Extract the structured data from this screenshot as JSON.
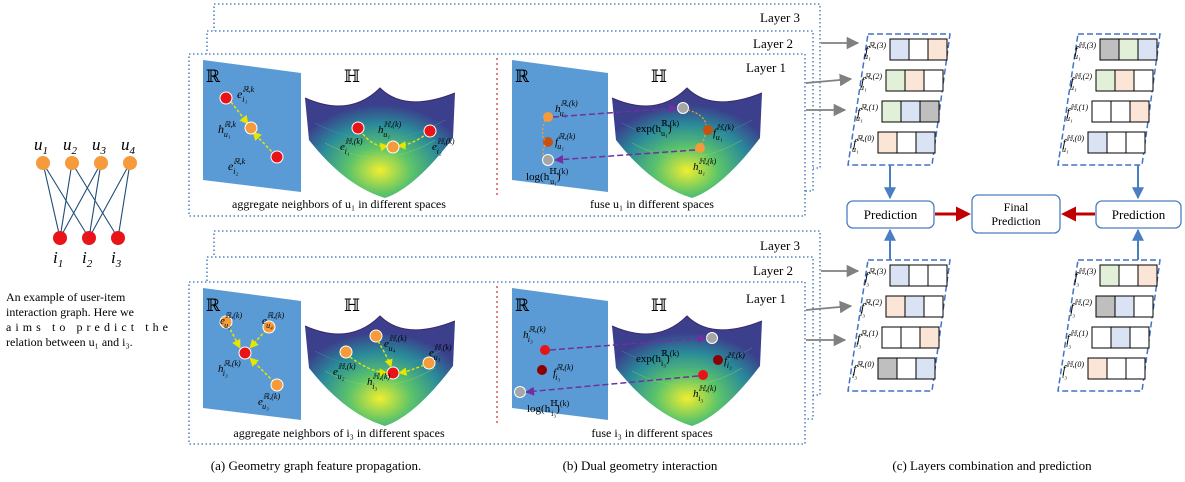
{
  "graph": {
    "users": [
      "u",
      "u",
      "u",
      "u"
    ],
    "user_subs": [
      "1",
      "2",
      "3",
      "4"
    ],
    "items": [
      "i",
      "i",
      "i"
    ],
    "item_subs": [
      "1",
      "2",
      "3"
    ],
    "caption_lines": [
      "An example of user-item",
      "interaction graph. Here we",
      "aims to predict the",
      "relation between u₁ and i₃."
    ],
    "colors": {
      "user": "#f59b3c",
      "item": "#e8141a"
    }
  },
  "layers": {
    "l1": "Layer 1",
    "l2": "Layer 2",
    "l3": "Layer 3"
  },
  "spaces": {
    "real": "ℝ",
    "hyper": "ℍ"
  },
  "top_panel": {
    "aggregate_caption": "aggregate neighbors of u₁ in different spaces",
    "fuse_caption": "fuse u₁ in different spaces",
    "labels": {
      "e_i1": "e",
      "e_i2": "e",
      "h_u1": "h",
      "e_i1_h": "e",
      "h_u1_h": "h",
      "e_i2_h": "e",
      "h_u1_r_b": "h",
      "f_u1_r": "f",
      "log_h": "log(h",
      "exp_h": "exp(h",
      "f_u1_h": "f",
      "h_u1_h_b": "h"
    }
  },
  "bottom_panel": {
    "aggregate_caption": "aggregate neighbors of i₃ in different spaces",
    "fuse_caption": "fuse i₃ in different spaces"
  },
  "prediction": {
    "left": "Prediction",
    "right": "Prediction",
    "final_line1": "Final",
    "final_line2": "Prediction"
  },
  "feature_stacks": {
    "top_left": {
      "f": "f",
      "sub": "u₁",
      "sups": [
        "ℝ,(3)",
        "ℝ,(2)",
        "ℝ,(1)",
        "ℝ,(0)"
      ]
    },
    "top_right": {
      "f": "f",
      "sub": "u₁",
      "sups": [
        "ℍ,(3)",
        "ℍ,(2)",
        "ℍ,(1)",
        "ℍ,(0)"
      ]
    },
    "bot_left": {
      "f": "f",
      "sub": "i₃",
      "sups": [
        "ℝ,(3)",
        "ℝ,(2)",
        "ℝ,(1)",
        "ℝ,(0)"
      ]
    },
    "bot_right": {
      "f": "f",
      "sub": "i₃",
      "sups": [
        "ℍ,(3)",
        "ℍ,(2)",
        "ℍ,(1)",
        "ℍ,(0)"
      ]
    }
  },
  "captions": {
    "a": "(a) Geometry graph feature propagation.",
    "b": "(b) Dual geometry interaction",
    "c": "(c) Layers combination and prediction"
  },
  "colors": {
    "panel_blue": "#5b9bd5",
    "dotted": "#2e6db3",
    "dash_box": "#4472c4",
    "arrow_red": "#c00000",
    "arrow_blue": "#4a7ec2",
    "purple": "#7030a0",
    "yellow": "#e6e600",
    "cell_blue": "#dae3f3",
    "cell_green": "#e2f0d9",
    "cell_orange": "#fbe5d6",
    "cell_gray": "#bfbfbf"
  }
}
